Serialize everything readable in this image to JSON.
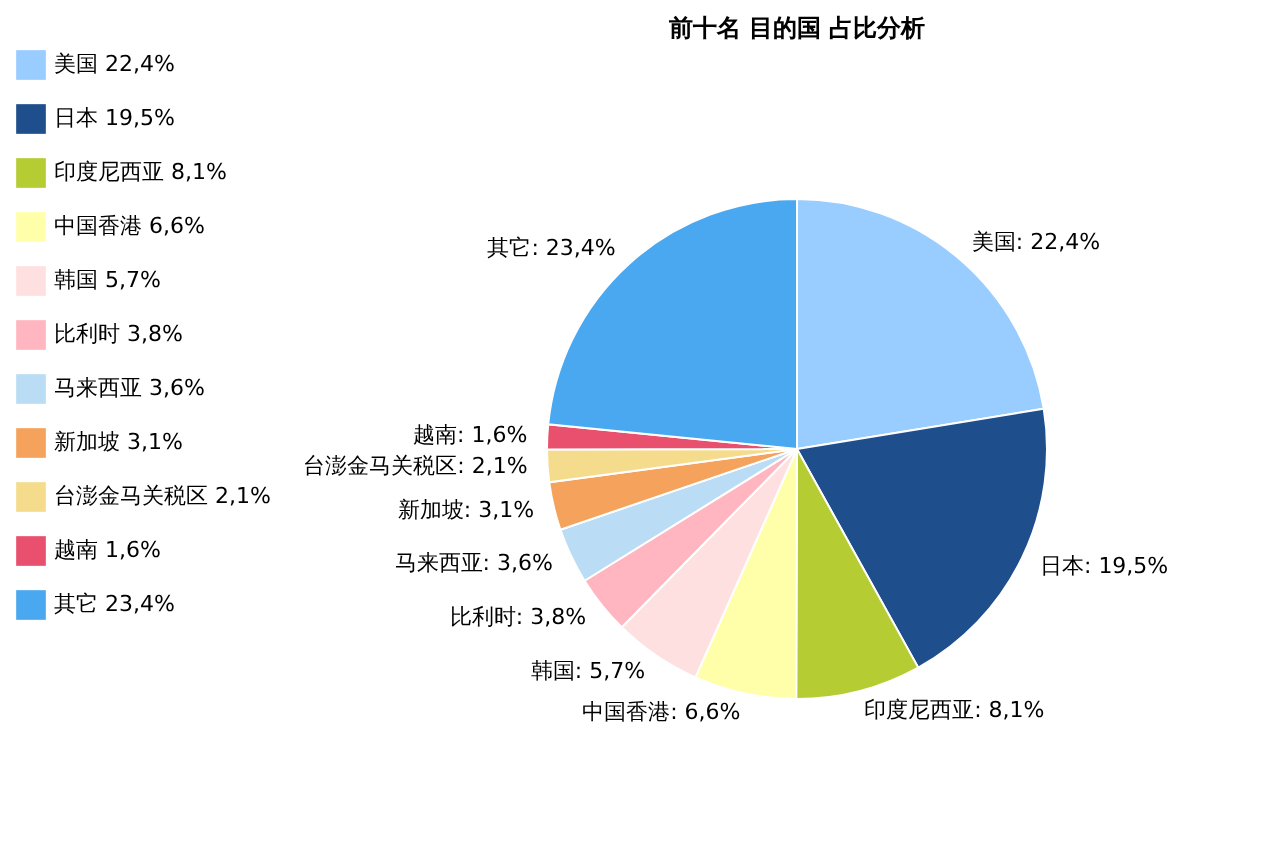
{
  "chart_data": {
    "type": "pie",
    "title": "前十名  目的国  占比分析",
    "categories": [
      "美国",
      "日本",
      "印度尼西亚",
      "中国香港",
      "韩国",
      "比利时",
      "马来西亚",
      "新加坡",
      "台澎金马关税区",
      "越南",
      "其它"
    ],
    "values": [
      22.4,
      19.5,
      8.1,
      6.6,
      5.7,
      3.8,
      3.6,
      3.1,
      2.1,
      1.6,
      23.4
    ],
    "value_labels": [
      "22,4%",
      "19,5%",
      "8,1%",
      "6,6%",
      "5,7%",
      "3,8%",
      "3,6%",
      "3,1%",
      "2,1%",
      "1,6%",
      "23,4%"
    ],
    "colors": [
      "#99ccff",
      "#1f4e8c",
      "#b5cc33",
      "#ffffaa",
      "#ffe0e0",
      "#ffb6c1",
      "#bbdcf5",
      "#f5a35c",
      "#f5dc8c",
      "#e8506e",
      "#4aa8f0"
    ],
    "legend": "left"
  }
}
